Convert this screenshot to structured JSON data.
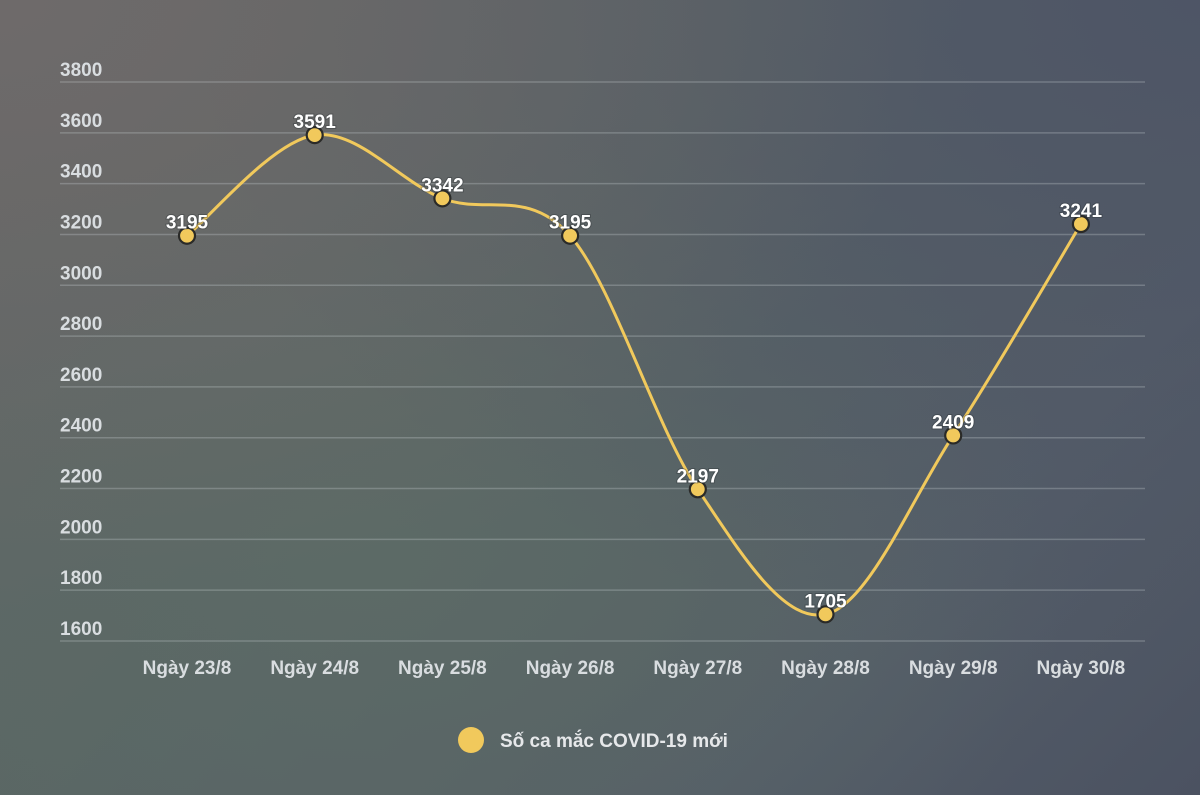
{
  "chart_data": {
    "type": "line",
    "categories": [
      "Ngày 23/8",
      "Ngày 24/8",
      "Ngày 25/8",
      "Ngày 26/8",
      "Ngày 27/8",
      "Ngày 28/8",
      "Ngày 29/8",
      "Ngày 30/8"
    ],
    "series": [
      {
        "name": "Số ca mắc COVID-19 mới",
        "values": [
          3195,
          3591,
          3342,
          3195,
          2197,
          1705,
          2409,
          3241
        ],
        "color": "#f1c95c"
      }
    ],
    "yticks": [
      1600,
      1800,
      2000,
      2200,
      2400,
      2600,
      2800,
      3000,
      3200,
      3400,
      3600,
      3800
    ],
    "ylim": [
      1600,
      3800
    ],
    "title": "",
    "xlabel": "",
    "ylabel": "",
    "grid": true,
    "legend_position": "bottom-center",
    "smooth": true
  }
}
